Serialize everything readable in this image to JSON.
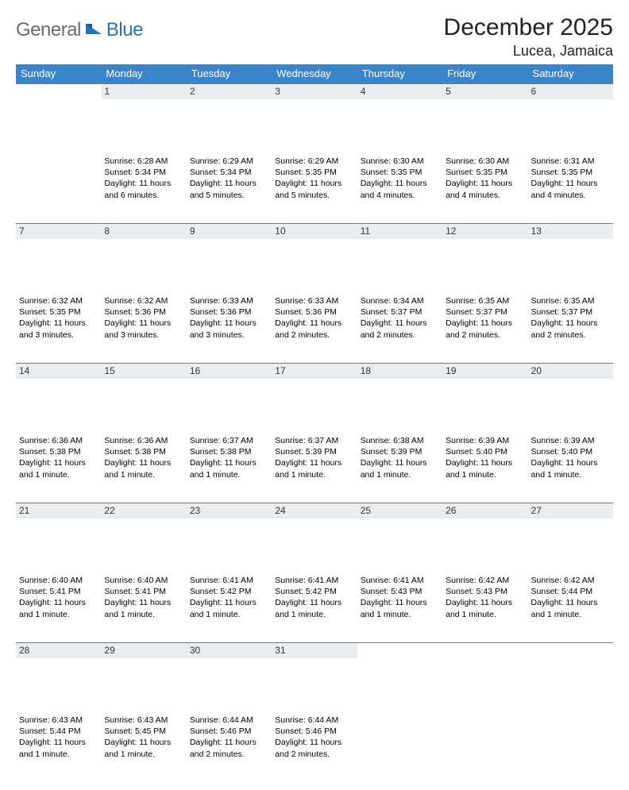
{
  "brand": {
    "word1": "General",
    "word2": "Blue"
  },
  "title": "December 2025",
  "location": "Lucea, Jamaica",
  "colors": {
    "header_bg": "#3a85c9",
    "header_text": "#ffffff",
    "daynum_bg": "#e9edf0",
    "rule": "#3a85c9",
    "logo_gray": "#6b6b6b",
    "logo_blue": "#2a71b8"
  },
  "weekdays": [
    "Sunday",
    "Monday",
    "Tuesday",
    "Wednesday",
    "Thursday",
    "Friday",
    "Saturday"
  ],
  "weeks": [
    [
      {
        "day": "",
        "sunrise": "",
        "sunset": "",
        "daylight": ""
      },
      {
        "day": "1",
        "sunrise": "Sunrise: 6:28 AM",
        "sunset": "Sunset: 5:34 PM",
        "daylight": "Daylight: 11 hours and 6 minutes."
      },
      {
        "day": "2",
        "sunrise": "Sunrise: 6:29 AM",
        "sunset": "Sunset: 5:34 PM",
        "daylight": "Daylight: 11 hours and 5 minutes."
      },
      {
        "day": "3",
        "sunrise": "Sunrise: 6:29 AM",
        "sunset": "Sunset: 5:35 PM",
        "daylight": "Daylight: 11 hours and 5 minutes."
      },
      {
        "day": "4",
        "sunrise": "Sunrise: 6:30 AM",
        "sunset": "Sunset: 5:35 PM",
        "daylight": "Daylight: 11 hours and 4 minutes."
      },
      {
        "day": "5",
        "sunrise": "Sunrise: 6:30 AM",
        "sunset": "Sunset: 5:35 PM",
        "daylight": "Daylight: 11 hours and 4 minutes."
      },
      {
        "day": "6",
        "sunrise": "Sunrise: 6:31 AM",
        "sunset": "Sunset: 5:35 PM",
        "daylight": "Daylight: 11 hours and 4 minutes."
      }
    ],
    [
      {
        "day": "7",
        "sunrise": "Sunrise: 6:32 AM",
        "sunset": "Sunset: 5:35 PM",
        "daylight": "Daylight: 11 hours and 3 minutes."
      },
      {
        "day": "8",
        "sunrise": "Sunrise: 6:32 AM",
        "sunset": "Sunset: 5:36 PM",
        "daylight": "Daylight: 11 hours and 3 minutes."
      },
      {
        "day": "9",
        "sunrise": "Sunrise: 6:33 AM",
        "sunset": "Sunset: 5:36 PM",
        "daylight": "Daylight: 11 hours and 3 minutes."
      },
      {
        "day": "10",
        "sunrise": "Sunrise: 6:33 AM",
        "sunset": "Sunset: 5:36 PM",
        "daylight": "Daylight: 11 hours and 2 minutes."
      },
      {
        "day": "11",
        "sunrise": "Sunrise: 6:34 AM",
        "sunset": "Sunset: 5:37 PM",
        "daylight": "Daylight: 11 hours and 2 minutes."
      },
      {
        "day": "12",
        "sunrise": "Sunrise: 6:35 AM",
        "sunset": "Sunset: 5:37 PM",
        "daylight": "Daylight: 11 hours and 2 minutes."
      },
      {
        "day": "13",
        "sunrise": "Sunrise: 6:35 AM",
        "sunset": "Sunset: 5:37 PM",
        "daylight": "Daylight: 11 hours and 2 minutes."
      }
    ],
    [
      {
        "day": "14",
        "sunrise": "Sunrise: 6:36 AM",
        "sunset": "Sunset: 5:38 PM",
        "daylight": "Daylight: 11 hours and 1 minute."
      },
      {
        "day": "15",
        "sunrise": "Sunrise: 6:36 AM",
        "sunset": "Sunset: 5:38 PM",
        "daylight": "Daylight: 11 hours and 1 minute."
      },
      {
        "day": "16",
        "sunrise": "Sunrise: 6:37 AM",
        "sunset": "Sunset: 5:38 PM",
        "daylight": "Daylight: 11 hours and 1 minute."
      },
      {
        "day": "17",
        "sunrise": "Sunrise: 6:37 AM",
        "sunset": "Sunset: 5:39 PM",
        "daylight": "Daylight: 11 hours and 1 minute."
      },
      {
        "day": "18",
        "sunrise": "Sunrise: 6:38 AM",
        "sunset": "Sunset: 5:39 PM",
        "daylight": "Daylight: 11 hours and 1 minute."
      },
      {
        "day": "19",
        "sunrise": "Sunrise: 6:39 AM",
        "sunset": "Sunset: 5:40 PM",
        "daylight": "Daylight: 11 hours and 1 minute."
      },
      {
        "day": "20",
        "sunrise": "Sunrise: 6:39 AM",
        "sunset": "Sunset: 5:40 PM",
        "daylight": "Daylight: 11 hours and 1 minute."
      }
    ],
    [
      {
        "day": "21",
        "sunrise": "Sunrise: 6:40 AM",
        "sunset": "Sunset: 5:41 PM",
        "daylight": "Daylight: 11 hours and 1 minute."
      },
      {
        "day": "22",
        "sunrise": "Sunrise: 6:40 AM",
        "sunset": "Sunset: 5:41 PM",
        "daylight": "Daylight: 11 hours and 1 minute."
      },
      {
        "day": "23",
        "sunrise": "Sunrise: 6:41 AM",
        "sunset": "Sunset: 5:42 PM",
        "daylight": "Daylight: 11 hours and 1 minute."
      },
      {
        "day": "24",
        "sunrise": "Sunrise: 6:41 AM",
        "sunset": "Sunset: 5:42 PM",
        "daylight": "Daylight: 11 hours and 1 minute."
      },
      {
        "day": "25",
        "sunrise": "Sunrise: 6:41 AM",
        "sunset": "Sunset: 5:43 PM",
        "daylight": "Daylight: 11 hours and 1 minute."
      },
      {
        "day": "26",
        "sunrise": "Sunrise: 6:42 AM",
        "sunset": "Sunset: 5:43 PM",
        "daylight": "Daylight: 11 hours and 1 minute."
      },
      {
        "day": "27",
        "sunrise": "Sunrise: 6:42 AM",
        "sunset": "Sunset: 5:44 PM",
        "daylight": "Daylight: 11 hours and 1 minute."
      }
    ],
    [
      {
        "day": "28",
        "sunrise": "Sunrise: 6:43 AM",
        "sunset": "Sunset: 5:44 PM",
        "daylight": "Daylight: 11 hours and 1 minute."
      },
      {
        "day": "29",
        "sunrise": "Sunrise: 6:43 AM",
        "sunset": "Sunset: 5:45 PM",
        "daylight": "Daylight: 11 hours and 1 minute."
      },
      {
        "day": "30",
        "sunrise": "Sunrise: 6:44 AM",
        "sunset": "Sunset: 5:46 PM",
        "daylight": "Daylight: 11 hours and 2 minutes."
      },
      {
        "day": "31",
        "sunrise": "Sunrise: 6:44 AM",
        "sunset": "Sunset: 5:46 PM",
        "daylight": "Daylight: 11 hours and 2 minutes."
      },
      {
        "day": "",
        "sunrise": "",
        "sunset": "",
        "daylight": ""
      },
      {
        "day": "",
        "sunrise": "",
        "sunset": "",
        "daylight": ""
      },
      {
        "day": "",
        "sunrise": "",
        "sunset": "",
        "daylight": ""
      }
    ]
  ]
}
